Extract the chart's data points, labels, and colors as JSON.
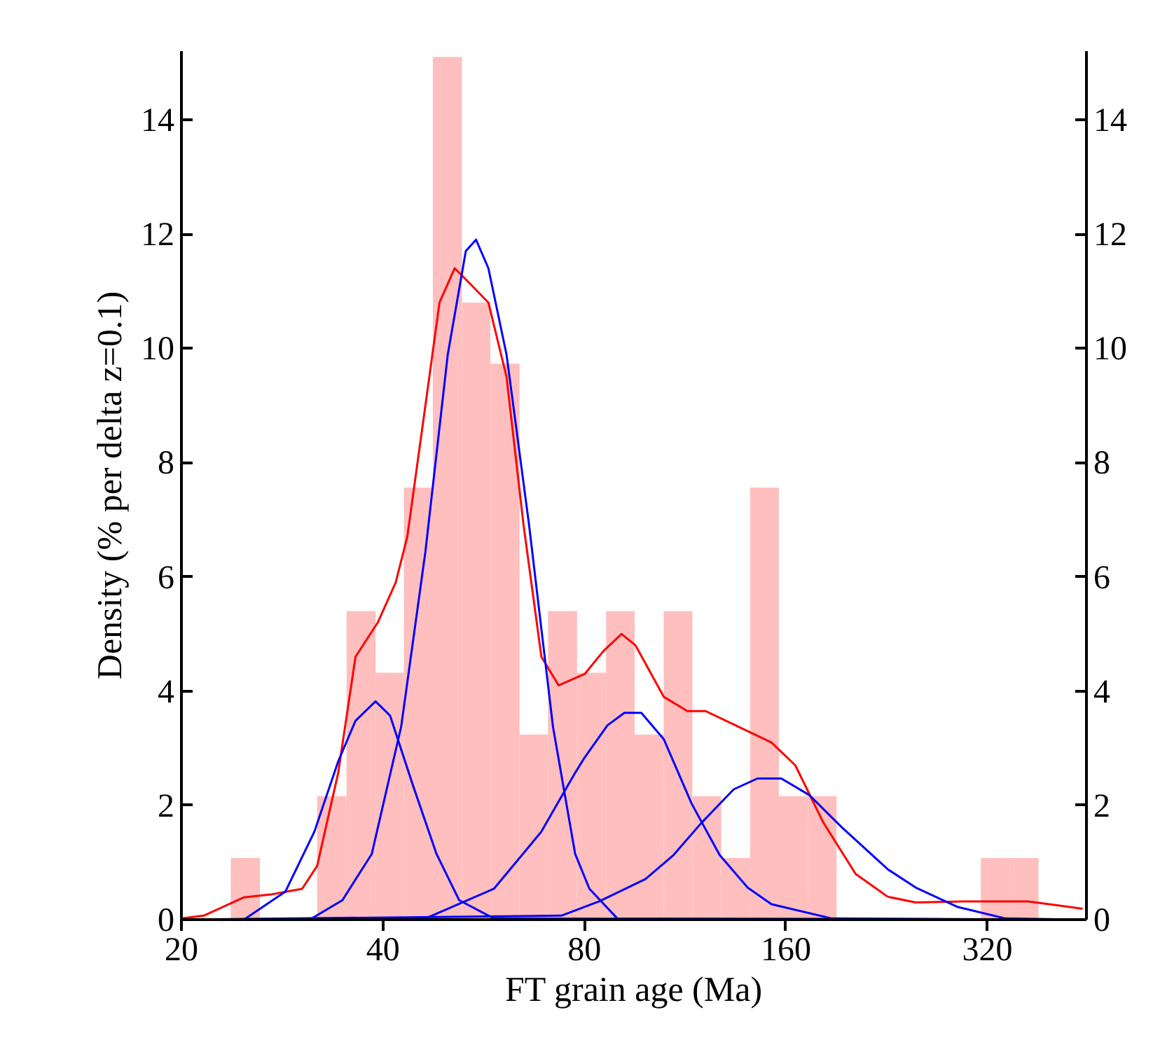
{
  "chart_data": {
    "type": "histogram",
    "xlabel": "FT grain age (Ma)",
    "ylabel": "Density (% per delta z=0.1)",
    "bins": [
      23.7,
      26.2,
      31.9,
      35.3,
      39.0,
      43.0,
      47.5,
      52.5,
      57.9,
      64.0,
      70.6,
      78.0,
      86.2,
      95.1,
      105.1,
      116.0,
      128.1,
      141.5,
      156.2,
      172.5,
      190.5,
      312.9,
      345.5,
      381.6
    ],
    "values": [
      1.08,
      0,
      2.16,
      5.4,
      4.32,
      7.56,
      15.1,
      10.8,
      9.73,
      3.24,
      5.4,
      4.32,
      5.4,
      3.24,
      5.4,
      2.16,
      1.08,
      7.56,
      2.16,
      2.16,
      0,
      1.08,
      1.08
    ],
    "color": "#ffbfbf",
    "series": [
      {
        "type": "line",
        "color": "#ff0000",
        "x": [
          20.0,
          21.6,
          24.8,
          27.2,
          30.3,
          31.9,
          34.3,
          36.4,
          39.3,
          41.8,
          43.5,
          46.3,
          48.6,
          51.2,
          54.3,
          57.5,
          61.2,
          64.9,
          69.0,
          73.2,
          80.1,
          85.4,
          90.9,
          95.4,
          105.1,
          114.0,
          121.4,
          140.3,
          152.3,
          165.3,
          182.0,
          203.4,
          227.2,
          250.2,
          294.8,
          368.0,
          444.2
        ],
        "values": [
          0.02,
          0.07,
          0.39,
          0.44,
          0.54,
          0.94,
          2.57,
          4.6,
          5.2,
          5.9,
          6.7,
          9.0,
          10.8,
          11.4,
          11.1,
          10.8,
          9.5,
          6.9,
          4.6,
          4.1,
          4.3,
          4.7,
          5.0,
          4.8,
          3.9,
          3.65,
          3.65,
          3.3,
          3.1,
          2.7,
          1.7,
          0.8,
          0.4,
          0.3,
          0.32,
          0.32,
          0.19
        ]
      },
      {
        "type": "line",
        "color": "#0000ff",
        "x": [
          20.0,
          24.8,
          28.6,
          31.6,
          34.3,
          36.4,
          39.0,
          41.0,
          44.3,
          48.1,
          52.0,
          58.6,
          444.2
        ],
        "values": [
          0,
          0,
          0.49,
          1.54,
          2.77,
          3.48,
          3.82,
          3.57,
          2.37,
          1.15,
          0.34,
          0.02,
          0
        ]
      },
      {
        "type": "line",
        "color": "#0000ff",
        "x": [
          20.0,
          31.1,
          34.8,
          38.5,
          42.6,
          46.3,
          50.0,
          53.2,
          55.1,
          57.5,
          61.2,
          66.1,
          71.8,
          77.5,
          81.4,
          89.6,
          444.2
        ],
        "values": [
          0,
          0,
          0.34,
          1.15,
          3.38,
          6.44,
          9.89,
          11.7,
          11.9,
          11.4,
          9.89,
          6.93,
          3.38,
          1.15,
          0.54,
          0.02,
          0
        ]
      },
      {
        "type": "line",
        "color": "#0000ff",
        "x": [
          20.0,
          46.3,
          58.6,
          69.0,
          77.5,
          80.1,
          86.6,
          91.8,
          97.3,
          105.1,
          115.7,
          127.4,
          140.3,
          152.3,
          187.4,
          444.2
        ],
        "values": [
          0,
          0.02,
          0.54,
          1.54,
          2.57,
          2.84,
          3.4,
          3.62,
          3.62,
          3.16,
          2.03,
          1.13,
          0.56,
          0.27,
          0.02,
          0
        ]
      },
      {
        "type": "line",
        "color": "#0000ff",
        "x": [
          20.0,
          73.9,
          84.2,
          98.7,
          108.7,
          119.6,
          133.7,
          145.1,
          157.5,
          173.4,
          193.8,
          227.2,
          250.2,
          289.2,
          340.6,
          444.2
        ],
        "values": [
          0,
          0.07,
          0.32,
          0.71,
          1.13,
          1.69,
          2.28,
          2.47,
          2.47,
          2.18,
          1.62,
          0.88,
          0.56,
          0.22,
          0.02,
          0
        ]
      }
    ],
    "log": "x",
    "xlim": [
      20,
      450
    ],
    "xticks": [
      20,
      40,
      80,
      160,
      320
    ],
    "ylim": [
      0,
      15.2
    ],
    "yticks": [
      0,
      2,
      4,
      6,
      8,
      10,
      12,
      14
    ],
    "y2lim": [
      0,
      15.2
    ],
    "y2ticks": [
      0,
      2,
      4,
      6,
      8,
      10,
      12,
      14
    ],
    "grid": false
  }
}
